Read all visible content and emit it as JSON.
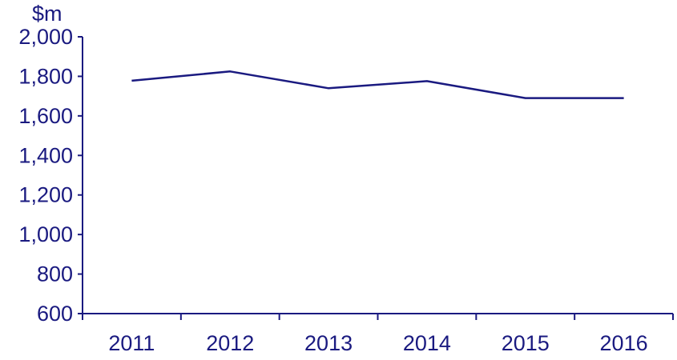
{
  "chart_data": {
    "type": "line",
    "title": "",
    "ylabel": "$m",
    "xlabel": "",
    "categories": [
      "2011",
      "2012",
      "2013",
      "2014",
      "2015",
      "2016"
    ],
    "series": [
      {
        "values": [
          1778,
          1825,
          1740,
          1776,
          1690,
          1690
        ]
      }
    ],
    "ylim": [
      600,
      2000
    ],
    "yticks": [
      600,
      800,
      1000,
      1200,
      1400,
      1600,
      1800,
      2000
    ],
    "ytick_labels": [
      "600",
      "800",
      "1,000",
      "1,200",
      "1,400",
      "1,600",
      "1,800",
      "2,000"
    ],
    "grid": false,
    "legend": "none",
    "colors": {
      "line": "#1a1a80",
      "axis": "#1a1a80",
      "text": "#1a1a80"
    }
  }
}
